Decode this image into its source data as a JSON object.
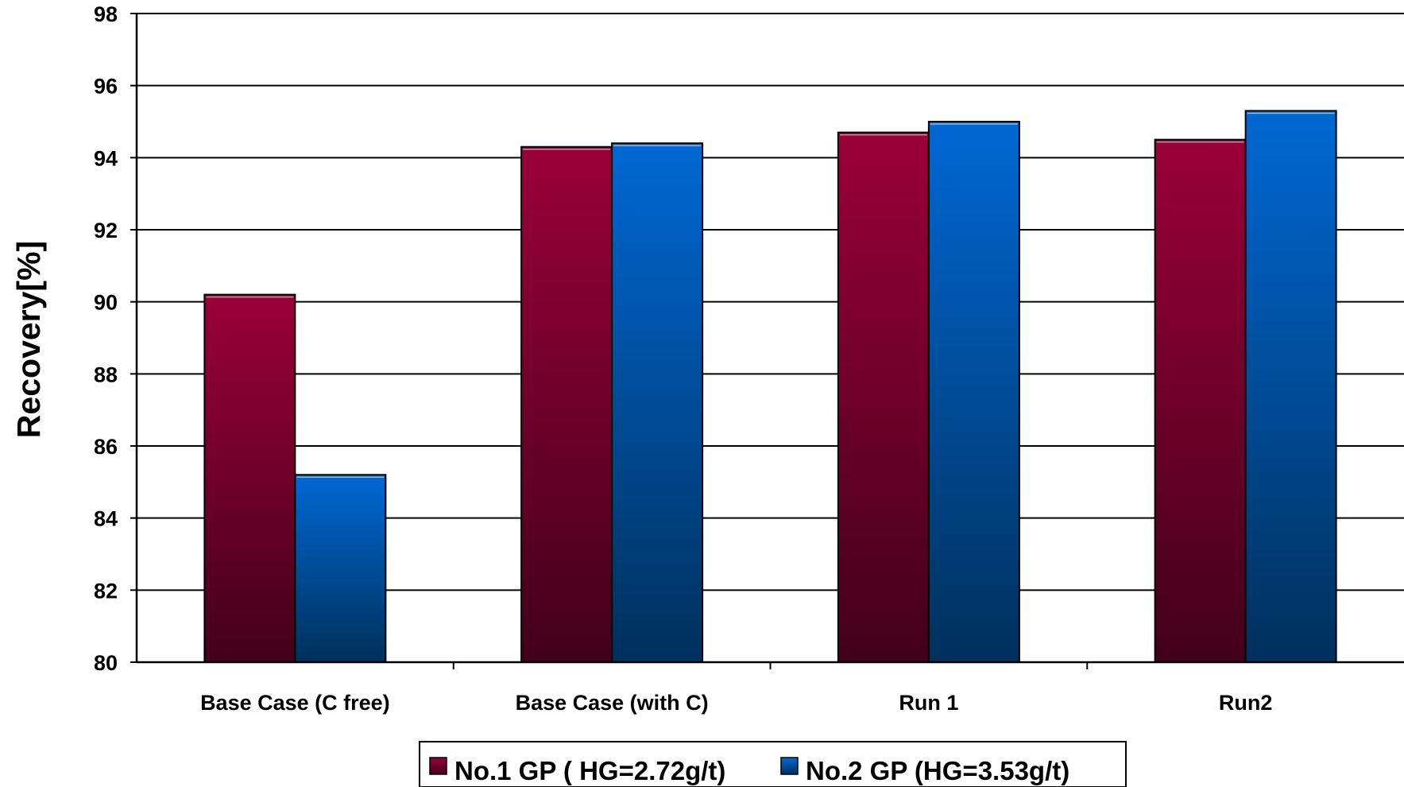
{
  "chart_data": {
    "type": "bar",
    "title": "",
    "xlabel": "",
    "ylabel": "Recovery[%]",
    "ylim": [
      80,
      98
    ],
    "yticks": [
      80,
      82,
      84,
      86,
      88,
      90,
      92,
      94,
      96,
      98
    ],
    "grid": true,
    "legend_position": "bottom",
    "categories": [
      "Base Case (C free)",
      "Base Case (with C)",
      "Run 1",
      "Run2"
    ],
    "series": [
      {
        "name": "No.1 GP ( HG=2.72g/t)",
        "values": [
          90.2,
          94.3,
          94.7,
          94.5
        ],
        "color_top": "#9a0038",
        "color_bottom": "#42001a"
      },
      {
        "name": "No.2 GP (HG=3.53g/t)",
        "values": [
          85.2,
          94.4,
          95.0,
          95.3
        ],
        "color_top": "#0068d4",
        "color_bottom": "#00305c"
      }
    ]
  }
}
